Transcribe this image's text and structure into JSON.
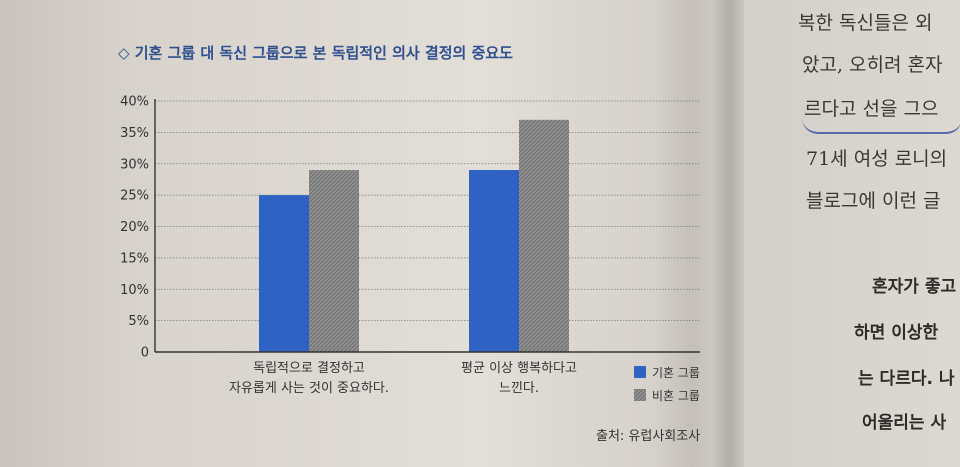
{
  "page": {
    "title": "◇ 기혼 그룹 대 독신 그룹으로 본 독립적인 의사 결정의 중요도",
    "source": "출처: 유럽사회조사"
  },
  "chart_data": {
    "type": "bar",
    "title": "◇ 기혼 그룹 대 독신 그룹으로 본 독립적인 의사 결정의 중요도",
    "categories": [
      [
        "독립적으로 결정하고",
        "자유롭게 사는 것이 중요하다."
      ],
      [
        "평균 이상 행복하다고",
        "느낀다."
      ]
    ],
    "series": [
      {
        "name": "기혼 그룹",
        "values": [
          25,
          29
        ],
        "color": "#2e63c4"
      },
      {
        "name": "비혼 그룹",
        "values": [
          29,
          37
        ],
        "color": "#8e8e8e"
      }
    ],
    "ylim": [
      0,
      40
    ],
    "yticks": [
      "0",
      "5%",
      "10%",
      "15%",
      "20%",
      "25%",
      "30%",
      "35%",
      "40%"
    ],
    "grid": true,
    "legend_position": "bottom-right"
  },
  "right_page": {
    "lines": [
      "복한 독신들은 외",
      "았고, 오히려 혼자",
      "르다고 선을 그으",
      "71세 여성 로니의",
      "블로그에 이런 글",
      "혼자가 좋고",
      "하면 이상한",
      "는 다르다. 나",
      "어울리는 사"
    ]
  }
}
